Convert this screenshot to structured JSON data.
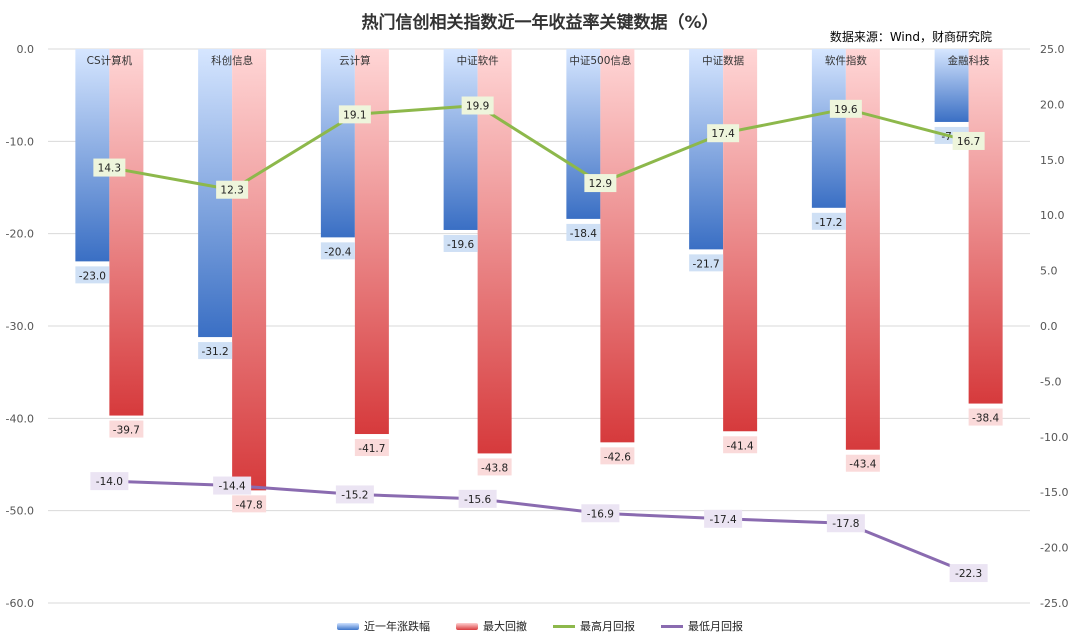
{
  "title": "热门信创相关指数近一年收益率关键数据（%）",
  "source": "数据来源：Wind，财商研究院",
  "colors": {
    "return_bar": "#5b8fd8",
    "drawdown_bar": "#e8575a",
    "max_month_line": "#8db84b",
    "min_month_line": "#8a6bb0"
  },
  "chart_data": {
    "type": "bar",
    "categories": [
      "CS计算机",
      "科创信息",
      "云计算",
      "中证软件",
      "中证500信息",
      "中证数据",
      "软件指数",
      "金融科技"
    ],
    "series": [
      {
        "name": "近一年涨跌幅",
        "kind": "bar",
        "axis": "left",
        "values": [
          -23.0,
          -31.2,
          -20.4,
          -19.6,
          -18.4,
          -21.7,
          -17.2,
          -7.9
        ]
      },
      {
        "name": "最大回撤",
        "kind": "bar",
        "axis": "left",
        "values": [
          -39.7,
          -47.8,
          -41.7,
          -43.8,
          -42.6,
          -41.4,
          -43.4,
          -38.4
        ]
      },
      {
        "name": "最高月回报",
        "kind": "line",
        "axis": "right",
        "values": [
          14.3,
          12.3,
          19.1,
          19.9,
          12.9,
          17.4,
          19.6,
          16.7
        ]
      },
      {
        "name": "最低月回报",
        "kind": "line",
        "axis": "right",
        "values": [
          -14.0,
          -14.4,
          -15.2,
          -15.6,
          -16.9,
          -17.4,
          -17.8,
          -22.3
        ]
      }
    ],
    "left_axis": {
      "ylim": [
        -60,
        0
      ],
      "ticks": [
        "0.0",
        "-10.0",
        "-20.0",
        "-30.0",
        "-40.0",
        "-50.0",
        "-60.0"
      ]
    },
    "right_axis": {
      "ylim": [
        -25,
        25
      ],
      "ticks": [
        "25.0",
        "20.0",
        "15.0",
        "10.0",
        "5.0",
        "0.0",
        "-5.0",
        "-10.0",
        "-15.0",
        "-20.0",
        "-25.0"
      ]
    },
    "grid": true,
    "legend_position": "bottom"
  }
}
